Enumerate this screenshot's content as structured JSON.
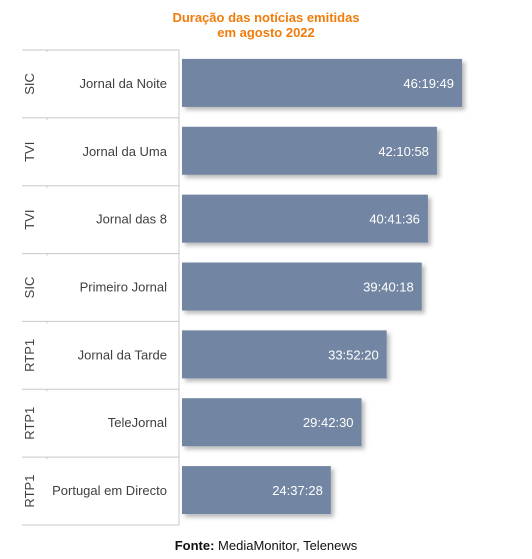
{
  "chart_data": {
    "type": "bar",
    "orientation": "horizontal",
    "title_line1": "Duração das notícias emitidas",
    "title_line2": "em agosto 2022",
    "bar_color": "#7286a3",
    "title_color": "#f07c0c",
    "value_unit": "hh:mm:ss",
    "rows": [
      {
        "channel": "SIC",
        "program": "Jornal da Noite",
        "label": "46:19:49",
        "hours": 46.3303
      },
      {
        "channel": "TVI",
        "program": "Jornal da Uma",
        "label": "42:10:58",
        "hours": 42.1828
      },
      {
        "channel": "TVI",
        "program": "Jornal das 8",
        "label": "40:41:36",
        "hours": 40.6933
      },
      {
        "channel": "SIC",
        "program": "Primeiro Jornal",
        "label": "39:40:18",
        "hours": 39.6717
      },
      {
        "channel": "RTP1",
        "program": "Jornal da Tarde",
        "label": "33:52:20",
        "hours": 33.8722
      },
      {
        "channel": "RTP1",
        "program": "TeleJornal",
        "label": "29:42:30",
        "hours": 29.7083
      },
      {
        "channel": "RTP1",
        "program": "Portugal em Directo",
        "label": "24:37:28",
        "hours": 24.6244
      }
    ]
  },
  "source": {
    "prefix": "Fonte:",
    "text": " MediaMonitor, Telenews"
  }
}
